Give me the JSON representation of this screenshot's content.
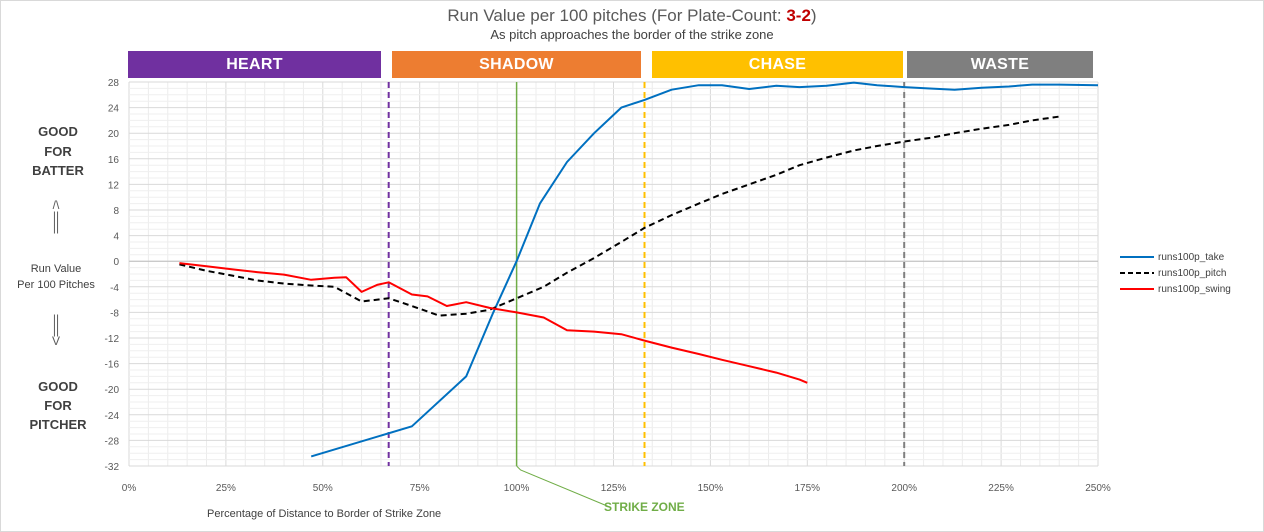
{
  "title": {
    "main": "Run Value per 100 pitches (For Plate-Count: ",
    "count": "3-2",
    "close": ")"
  },
  "subtitle": "As pitch approaches the border of the strike zone",
  "bands": [
    {
      "label": "HEART",
      "color": "#7030a0"
    },
    {
      "label": "SHADOW",
      "color": "#ed7d31"
    },
    {
      "label": "CHASE",
      "color": "#ffc000"
    },
    {
      "label": "WASTE",
      "color": "#7f7f7f"
    }
  ],
  "side_labels": {
    "batter": [
      "GOOD",
      "FOR",
      "BATTER"
    ],
    "arrow_up": "/\\\n||\n||",
    "ylabel": [
      "Run Value",
      "Per 100 Pitches"
    ],
    "arrow_down": "||\n||\nV",
    "pitcher": [
      "GOOD",
      "FOR",
      "PITCHER"
    ]
  },
  "xlabel": "Percentage of Distance to Border of Strike Zone",
  "strike_zone_label": "STRIKE ZONE",
  "chart_data": {
    "type": "line",
    "title": "Run Value per 100 pitches (For Plate-Count: 3-2)",
    "subtitle": "As pitch approaches the border of the strike zone",
    "xlabel": "Percentage of Distance to Border of Strike Zone",
    "ylabel": "Run Value Per 100 Pitches",
    "xlim": [
      0,
      250
    ],
    "ylim": [
      -32,
      28
    ],
    "x_ticks": [
      0,
      25,
      50,
      75,
      100,
      125,
      150,
      175,
      200,
      225,
      250
    ],
    "x_tick_labels": [
      "0%",
      "25%",
      "50%",
      "75%",
      "100%",
      "125%",
      "150%",
      "175%",
      "200%",
      "225%",
      "250%"
    ],
    "y_ticks": [
      28,
      24,
      20,
      16,
      12,
      8,
      4,
      0,
      -4,
      -8,
      -12,
      -16,
      -20,
      -24,
      -28,
      -32
    ],
    "y_tick_labels": [
      "28",
      "24",
      "20",
      "16",
      "12",
      "8",
      "4",
      "0",
      "-4",
      "-8",
      "-12",
      "-16",
      "-20",
      "-24",
      "-28",
      "-32"
    ],
    "grid": true,
    "legend_position": "right",
    "vlines": [
      {
        "x": 67,
        "color": "#7030a0",
        "style": "dashed"
      },
      {
        "x": 100,
        "color": "#70ad47",
        "style": "solid"
      },
      {
        "x": 133,
        "color": "#ffc000",
        "style": "dashed"
      },
      {
        "x": 200,
        "color": "#7f7f7f",
        "style": "dashed"
      }
    ],
    "series": [
      {
        "name": "runs100p_take",
        "color": "#0070c0",
        "style": "solid",
        "x": [
          47,
          73,
          87,
          94,
          100,
          106,
          113,
          120,
          127,
          133,
          140,
          147,
          153,
          160,
          167,
          173,
          180,
          187,
          193,
          200,
          206,
          213,
          220,
          227,
          233,
          240,
          250
        ],
        "y": [
          -30.5,
          -25.8,
          -18.0,
          -8.0,
          0.0,
          9.0,
          15.5,
          20.0,
          24.0,
          25.2,
          26.8,
          27.5,
          27.5,
          26.9,
          27.4,
          27.2,
          27.4,
          27.9,
          27.5,
          27.2,
          27.0,
          26.8,
          27.1,
          27.3,
          27.6,
          27.6,
          27.5
        ]
      },
      {
        "name": "runs100p_pitch",
        "color": "#000000",
        "style": "dashed",
        "x": [
          13,
          20,
          27,
          33,
          40,
          47,
          53,
          60,
          67,
          73,
          80,
          87,
          93,
          100,
          107,
          113,
          120,
          127,
          133,
          140,
          147,
          153,
          160,
          167,
          173,
          180,
          187,
          193,
          200,
          207,
          213,
          220,
          227,
          233,
          240
        ],
        "y": [
          -0.5,
          -1.5,
          -2.3,
          -3.0,
          -3.5,
          -3.8,
          -4.0,
          -6.3,
          -5.8,
          -7.0,
          -8.5,
          -8.2,
          -7.6,
          -5.8,
          -4.0,
          -1.8,
          0.5,
          3.0,
          5.2,
          7.2,
          9.0,
          10.5,
          12.0,
          13.5,
          15.0,
          16.2,
          17.3,
          18.0,
          18.7,
          19.3,
          20.0,
          20.7,
          21.3,
          22.0,
          22.6
        ]
      },
      {
        "name": "runs100p_swing",
        "color": "#ff0000",
        "style": "solid",
        "x": [
          13,
          20,
          27,
          33,
          40,
          47,
          53,
          56,
          60,
          64,
          67,
          73,
          77,
          82,
          87,
          93,
          100,
          107,
          113,
          120,
          127,
          133,
          140,
          147,
          153,
          160,
          167,
          173,
          175
        ],
        "y": [
          -0.3,
          -0.8,
          -1.3,
          -1.7,
          -2.1,
          -2.9,
          -2.6,
          -2.5,
          -4.8,
          -3.7,
          -3.3,
          -5.2,
          -5.5,
          -7.0,
          -6.4,
          -7.3,
          -8.0,
          -8.8,
          -10.8,
          -11.0,
          -11.4,
          -12.4,
          -13.5,
          -14.5,
          -15.4,
          -16.4,
          -17.4,
          -18.5,
          -19.0
        ]
      }
    ]
  }
}
